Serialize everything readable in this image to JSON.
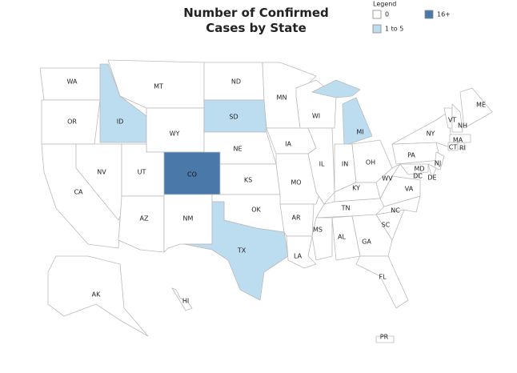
{
  "header": {
    "title": "Number of Confirmed Cases by State"
  },
  "legend": {
    "title": "Legend",
    "items": [
      {
        "label": "0",
        "color": "#ffffff"
      },
      {
        "label": "1 to 5",
        "color": "#bcdcf0"
      },
      {
        "label": "16+",
        "color": "#4a78a8"
      }
    ]
  },
  "states": [
    {
      "label": "WA",
      "category": "0"
    },
    {
      "label": "OR",
      "category": "0"
    },
    {
      "label": "CA",
      "category": "0"
    },
    {
      "label": "ID",
      "category": "1 to 5"
    },
    {
      "label": "NV",
      "category": "0"
    },
    {
      "label": "MT",
      "category": "0"
    },
    {
      "label": "WY",
      "category": "0"
    },
    {
      "label": "UT",
      "category": "0"
    },
    {
      "label": "AZ",
      "category": "0"
    },
    {
      "label": "CO",
      "category": "16+"
    },
    {
      "label": "NM",
      "category": "0"
    },
    {
      "label": "ND",
      "category": "0"
    },
    {
      "label": "SD",
      "category": "1 to 5"
    },
    {
      "label": "NE",
      "category": "0"
    },
    {
      "label": "KS",
      "category": "0"
    },
    {
      "label": "OK",
      "category": "0"
    },
    {
      "label": "TX",
      "category": "1 to 5"
    },
    {
      "label": "MN",
      "category": "0"
    },
    {
      "label": "IA",
      "category": "0"
    },
    {
      "label": "MO",
      "category": "0"
    },
    {
      "label": "AR",
      "category": "0"
    },
    {
      "label": "LA",
      "category": "0"
    },
    {
      "label": "WI",
      "category": "0"
    },
    {
      "label": "MI",
      "category": "1 to 5"
    },
    {
      "label": "IL",
      "category": "0"
    },
    {
      "label": "IN",
      "category": "0"
    },
    {
      "label": "OH",
      "category": "0"
    },
    {
      "label": "KY",
      "category": "0"
    },
    {
      "label": "TN",
      "category": "0"
    },
    {
      "label": "MS",
      "category": "0"
    },
    {
      "label": "AL",
      "category": "0"
    },
    {
      "label": "GA",
      "category": "0"
    },
    {
      "label": "FL",
      "category": "0"
    },
    {
      "label": "SC",
      "category": "0"
    },
    {
      "label": "NC",
      "category": "0"
    },
    {
      "label": "VA",
      "category": "0"
    },
    {
      "label": "WV",
      "category": "0"
    },
    {
      "label": "PA",
      "category": "0"
    },
    {
      "label": "NY",
      "category": "0"
    },
    {
      "label": "NJ",
      "category": "0"
    },
    {
      "label": "MD",
      "category": "0"
    },
    {
      "label": "DC",
      "category": "0"
    },
    {
      "label": "DE",
      "category": "0"
    },
    {
      "label": "VT",
      "category": "0"
    },
    {
      "label": "NH",
      "category": "0"
    },
    {
      "label": "ME",
      "category": "0"
    },
    {
      "label": "MA",
      "category": "0"
    },
    {
      "label": "CT",
      "category": "0"
    },
    {
      "label": "RI",
      "category": "0"
    },
    {
      "label": "AK",
      "category": "0"
    },
    {
      "label": "HI",
      "category": "0"
    },
    {
      "label": "PR",
      "category": "0"
    }
  ]
}
